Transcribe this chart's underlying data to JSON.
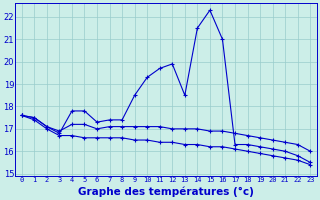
{
  "title": "Graphe des températures (°c)",
  "hours": [
    0,
    1,
    2,
    3,
    4,
    5,
    6,
    7,
    8,
    9,
    10,
    11,
    12,
    13,
    14,
    15,
    16,
    17,
    18,
    19,
    20,
    21,
    22,
    23
  ],
  "line1": [
    17.6,
    17.5,
    17.1,
    16.8,
    17.8,
    17.8,
    17.3,
    17.4,
    17.4,
    18.5,
    19.3,
    19.7,
    19.9,
    18.5,
    21.5,
    22.3,
    21.0,
    16.3,
    16.3,
    16.2,
    16.1,
    16.0,
    15.8,
    15.5
  ],
  "line2": [
    17.6,
    17.5,
    17.1,
    16.9,
    17.2,
    17.2,
    17.0,
    17.1,
    17.1,
    17.1,
    17.1,
    17.1,
    17.0,
    17.0,
    17.0,
    16.9,
    16.9,
    16.8,
    16.7,
    16.6,
    16.5,
    16.4,
    16.3,
    16.0
  ],
  "line3": [
    17.6,
    17.4,
    17.0,
    16.7,
    16.7,
    16.6,
    16.6,
    16.6,
    16.6,
    16.5,
    16.5,
    16.4,
    16.4,
    16.3,
    16.3,
    16.2,
    16.2,
    16.1,
    16.0,
    15.9,
    15.8,
    15.7,
    15.6,
    15.4
  ],
  "line_color": "#0000cc",
  "bg_color": "#cceee8",
  "grid_color": "#99cccc",
  "ylim": [
    14.9,
    22.6
  ],
  "yticks": [
    15,
    16,
    17,
    18,
    19,
    20,
    21,
    22
  ],
  "marker": "+"
}
